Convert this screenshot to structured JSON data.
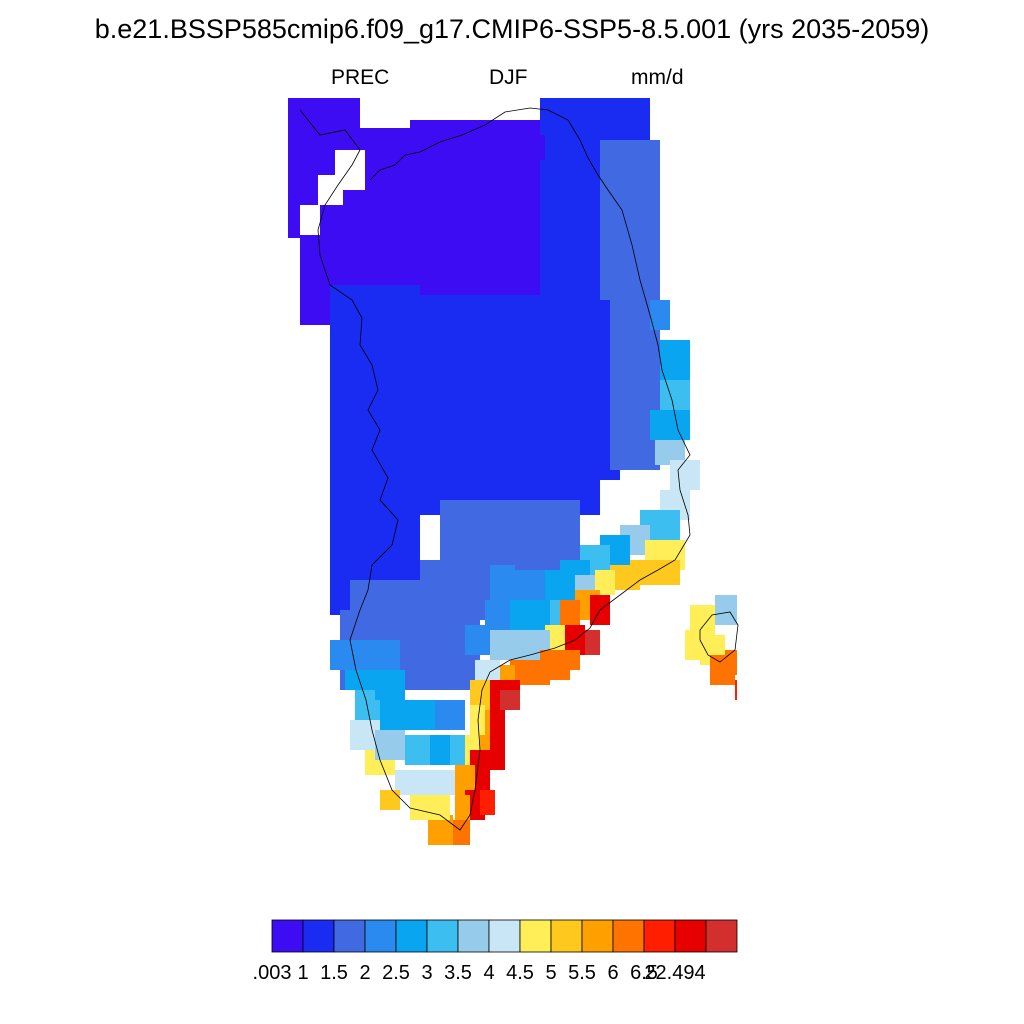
{
  "title": "b.e21.BSSP585cmip6.f09_g17.CMIP6-SSP5-8.5.001 (yrs 2035-2059)",
  "subtitle": {
    "variable": "PREC",
    "season": "DJF",
    "units": "mm/d"
  },
  "colorbar": {
    "colors": [
      "#3d0cf2",
      "#1a2cf2",
      "#4169e1",
      "#2a8af0",
      "#0aa5f0",
      "#3cbff0",
      "#96cbeb",
      "#c8e6f5",
      "#ffee58",
      "#ffc81e",
      "#ffa000",
      "#ff7300",
      "#ff1e00",
      "#e60000",
      "#d32f2f"
    ],
    "labels": [
      ".003",
      "1",
      "1.5",
      "2",
      "2.5",
      "3",
      "3.5",
      "4",
      "4.5",
      "5",
      "5.5",
      "6",
      "6.5",
      "22.494"
    ]
  }
}
